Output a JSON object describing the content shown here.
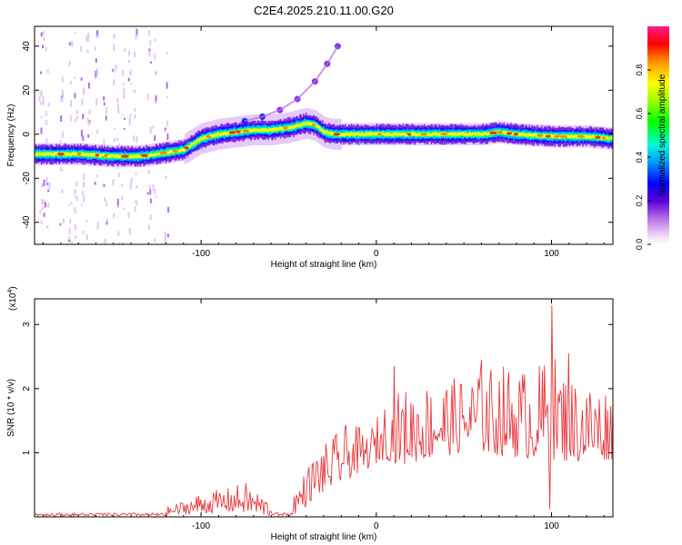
{
  "title": "C2E4.2025.210.11.00.G20",
  "chart_data": [
    {
      "type": "heatmap",
      "xlabel": "Height of straight line (km)",
      "ylabel": "Frequency (Hz)",
      "xlim": [
        -195,
        135
      ],
      "ylim": [
        -50,
        49
      ],
      "xticks": [
        -100,
        0,
        100
      ],
      "yticks": [
        -40,
        -20,
        0,
        20,
        40
      ],
      "ridge": {
        "x": [
          -195,
          -170,
          -150,
          -135,
          -125,
          -110,
          -100,
          -90,
          -80,
          -70,
          -60,
          -50,
          -40,
          -35,
          -30,
          -25,
          -20,
          -10,
          0,
          20,
          40,
          60,
          70,
          80,
          100,
          120,
          135
        ],
        "y": [
          -9,
          -9,
          -10,
          -10,
          -9,
          -7,
          -2,
          0,
          1,
          2,
          2,
          3,
          5,
          4,
          1,
          0,
          0,
          0,
          0,
          0,
          0,
          0,
          1,
          0,
          -1,
          -1,
          -2
        ]
      },
      "harmonic": {
        "x": [
          -75,
          -65,
          -55,
          -45,
          -35,
          -28,
          -22
        ],
        "y": [
          6,
          8,
          11,
          16,
          24,
          32,
          40
        ]
      },
      "colorbar": {
        "label": "Normalized spectral amplitude",
        "ticks": [
          "0.0",
          "0.2",
          "0.4",
          "0.6",
          "0.8"
        ],
        "range": [
          0,
          1
        ]
      }
    },
    {
      "type": "line",
      "xlabel": "Height of straight line (km)",
      "ylabel": "SNR (10 * v/v)",
      "scale_note": "(x10",
      "scale_exp": "4",
      "scale_close": ")",
      "xlim": [
        -195,
        135
      ],
      "ylim": [
        0,
        3.4
      ],
      "xticks": [
        -100,
        0,
        100
      ],
      "yticks": [
        1,
        2,
        3
      ],
      "color": "#e8383d",
      "envelope": {
        "x": [
          -195,
          -150,
          -130,
          -115,
          -100,
          -85,
          -75,
          -65,
          -55,
          -45,
          -35,
          -25,
          -15,
          -5,
          5,
          15,
          30,
          50,
          70,
          90,
          100,
          110,
          125,
          135
        ],
        "lo": [
          0.0,
          0.0,
          0.01,
          0.03,
          0.05,
          0.08,
          0.06,
          0.02,
          0.01,
          0.05,
          0.3,
          0.45,
          0.6,
          0.75,
          0.9,
          0.8,
          0.9,
          1.0,
          0.95,
          0.9,
          0.9,
          0.85,
          0.85,
          0.9
        ],
        "hi": [
          0.05,
          0.04,
          0.05,
          0.2,
          0.38,
          0.45,
          0.55,
          0.35,
          0.1,
          0.5,
          1.0,
          1.25,
          1.5,
          1.3,
          1.8,
          2.0,
          2.1,
          2.2,
          2.4,
          2.3,
          2.6,
          2.2,
          2.1,
          2.0
        ]
      },
      "spikes": [
        {
          "x": 100,
          "y": 3.3
        },
        {
          "x": 10,
          "y": 2.35
        },
        {
          "x": 99,
          "y": 0.12
        },
        {
          "x": 60,
          "y": 2.45
        },
        {
          "x": 110,
          "y": 2.55
        }
      ]
    }
  ]
}
